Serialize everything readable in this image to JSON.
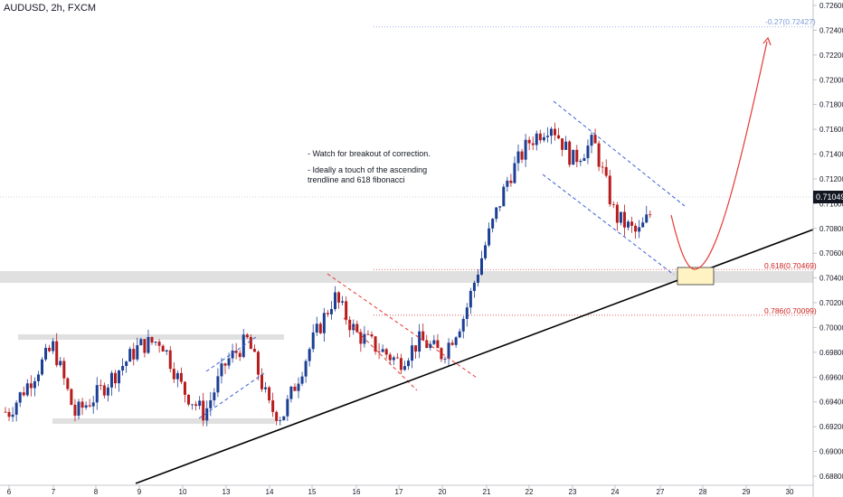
{
  "title": "AUDUSD, 2h, FXCM",
  "current_price_tag": "0.71049",
  "note": {
    "line1": "- Watch for breakout of correction.",
    "line2": "- Ideally a touch of the ascending",
    "line3": "trendline and 618 fibonacci"
  },
  "fib_levels": [
    {
      "label": "-0.27(0.72427)",
      "value": 0.72427,
      "color": "#7e9ad8"
    },
    {
      "label": "0.618(0.70469)",
      "value": 0.70469,
      "color": "#d02020"
    },
    {
      "label": "0.786(0.70099)",
      "value": 0.70099,
      "color": "#d02020"
    }
  ],
  "colors": {
    "up": "#1c3f94",
    "down": "#b71c1c",
    "trendline": "#000000",
    "channel_blue": "#3b5fd6",
    "channel_red": "#e53935",
    "projection": "#e53935",
    "zone": "#e0e0e0",
    "target_box": "#fff3c4"
  },
  "chart_data": {
    "type": "candlestick",
    "symbol": "AUDUSD",
    "timeframe": "2h",
    "source": "FXCM",
    "y_ticks": [
      "0.72600",
      "0.72400",
      "0.72200",
      "0.72000",
      "0.71800",
      "0.71600",
      "0.71400",
      "0.71200",
      "0.71000",
      "0.70800",
      "0.70600",
      "0.70400",
      "0.70200",
      "0.70000",
      "0.69800",
      "0.69600",
      "0.69400",
      "0.69200",
      "0.69000",
      "0.68800"
    ],
    "x_ticks": [
      "6",
      "7",
      "8",
      "9",
      "10",
      "13",
      "14",
      "15",
      "16",
      "17",
      "20",
      "21",
      "22",
      "23",
      "24",
      "27",
      "28",
      "29",
      "30"
    ],
    "ylim": [
      0.6873,
      0.7267
    ],
    "current_price": 0.71049,
    "close_path": [
      {
        "x": "6",
        "close": 0.6932
      },
      {
        "x": "7",
        "close": 0.6985
      },
      {
        "x": "7.5",
        "close": 0.693
      },
      {
        "x": "8",
        "close": 0.6945
      },
      {
        "x": "9",
        "close": 0.6985
      },
      {
        "x": "9.5",
        "close": 0.699
      },
      {
        "x": "10",
        "close": 0.695
      },
      {
        "x": "10.5",
        "close": 0.693
      },
      {
        "x": "13",
        "close": 0.6972
      },
      {
        "x": "13.5",
        "close": 0.699
      },
      {
        "x": "14",
        "close": 0.6935
      },
      {
        "x": "14.3",
        "close": 0.6928
      },
      {
        "x": "15",
        "close": 0.6988
      },
      {
        "x": "15.5",
        "close": 0.7025
      },
      {
        "x": "16",
        "close": 0.6995
      },
      {
        "x": "17",
        "close": 0.6972
      },
      {
        "x": "17.5",
        "close": 0.699
      },
      {
        "x": "20",
        "close": 0.6978
      },
      {
        "x": "20.5",
        "close": 0.701
      },
      {
        "x": "21",
        "close": 0.707
      },
      {
        "x": "21.5",
        "close": 0.712
      },
      {
        "x": "22",
        "close": 0.715
      },
      {
        "x": "22.5",
        "close": 0.7165
      },
      {
        "x": "23",
        "close": 0.7135
      },
      {
        "x": "23.5",
        "close": 0.715
      },
      {
        "x": "24",
        "close": 0.709
      },
      {
        "x": "24.5",
        "close": 0.7075
      },
      {
        "x": "27",
        "close": 0.7105
      }
    ]
  }
}
